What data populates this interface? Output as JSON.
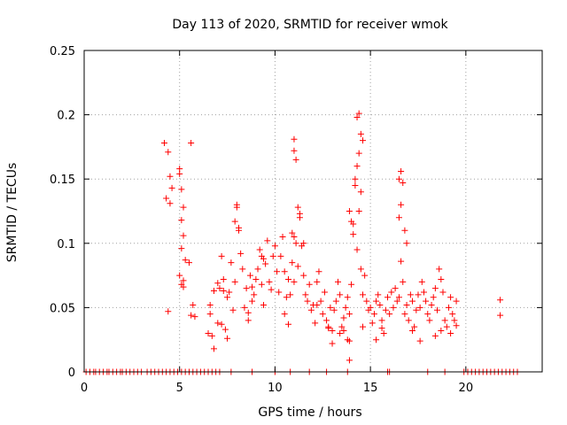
{
  "chart_data": {
    "type": "scatter",
    "title": "Day 113 of 2020, SRMTID for receiver wmok",
    "xlabel": "GPS time / hours",
    "ylabel": "SRMTID / TECUs",
    "xlim": [
      0,
      24
    ],
    "ylim": [
      0,
      0.25
    ],
    "xticks": [
      0,
      5,
      10,
      15,
      20
    ],
    "xtick_labels": [
      "0",
      "5",
      "10",
      "15",
      "20"
    ],
    "yticks": [
      0,
      0.05,
      0.1,
      0.15,
      0.2,
      0.25
    ],
    "ytick_labels": [
      "0",
      "0.05",
      "0.1",
      "0.15",
      "0.2",
      "0.25"
    ],
    "grid": true,
    "marker": "+",
    "series": [
      {
        "name": "SRMTID",
        "color": "#ff0000",
        "x": [
          4.2,
          4.4,
          4.5,
          4.3,
          4.6,
          4.5,
          4.4,
          5.0,
          5.1,
          5.2,
          5.0,
          5.1,
          5.2,
          5.3,
          5.0,
          5.1,
          5.2,
          5.6,
          5.5,
          5.7,
          5.6,
          5.8,
          5.1,
          5.2,
          6.5,
          6.6,
          6.7,
          6.8,
          7.0,
          7.1,
          7.2,
          7.3,
          7.4,
          7.5,
          7.6,
          7.7,
          7.8,
          7.9,
          8.0,
          8.1,
          8.2,
          8.3,
          8.4,
          8.5,
          8.6,
          8.7,
          8.8,
          8.9,
          9.0,
          9.1,
          9.2,
          9.3,
          9.4,
          9.5,
          9.6,
          9.7,
          9.8,
          9.9,
          10.0,
          10.1,
          10.2,
          10.3,
          10.4,
          10.5,
          10.6,
          10.7,
          10.8,
          10.9,
          11.0,
          11.1,
          11.2,
          11.3,
          11.4,
          11.5,
          11.6,
          11.7,
          11.8,
          11.9,
          12.0,
          12.1,
          12.2,
          12.3,
          12.4,
          12.5,
          12.6,
          12.7,
          12.8,
          12.9,
          13.0,
          13.1,
          13.2,
          13.3,
          13.4,
          13.5,
          13.6,
          13.7,
          13.8,
          13.9,
          14.0,
          14.1,
          14.2,
          14.3,
          14.4,
          14.5,
          14.6,
          14.7,
          14.8,
          14.9,
          15.0,
          15.1,
          15.2,
          15.3,
          15.4,
          15.5,
          15.6,
          15.7,
          15.8,
          15.9,
          16.0,
          16.1,
          16.2,
          16.3,
          16.4,
          16.5,
          16.6,
          16.7,
          16.8,
          16.9,
          17.0,
          17.1,
          17.2,
          17.3,
          17.4,
          17.5,
          17.6,
          17.7,
          17.8,
          17.9,
          18.0,
          18.1,
          18.2,
          18.3,
          18.4,
          18.5,
          18.6,
          18.7,
          18.8,
          18.9,
          19.0,
          19.1,
          19.2,
          19.3,
          19.4,
          19.5,
          11.0,
          11.0,
          11.1,
          11.2,
          11.3,
          11.5,
          14.3,
          14.4,
          14.5,
          14.4,
          14.3,
          14.2,
          14.5,
          14.6,
          14.0,
          13.9,
          14.1,
          16.6,
          16.5,
          16.7,
          16.6,
          16.5,
          16.8,
          16.9,
          10.9,
          11.0,
          8.8,
          8.1,
          8.0,
          7.9,
          9.3,
          9.4,
          8.6,
          7.5,
          7.2,
          7.3,
          7.0,
          6.8,
          6.6,
          10.5,
          10.7,
          12.8,
          13.0,
          13.4,
          13.6,
          13.8,
          13.9,
          14.6,
          15.3,
          15.6,
          17.2,
          17.6,
          18.4,
          18.7,
          19.2,
          19.5,
          21.8,
          21.8,
          13.9,
          12.2
        ],
        "y": [
          0.178,
          0.171,
          0.152,
          0.135,
          0.143,
          0.131,
          0.047,
          0.158,
          0.142,
          0.128,
          0.154,
          0.118,
          0.106,
          0.087,
          0.075,
          0.068,
          0.066,
          0.178,
          0.085,
          0.052,
          0.044,
          0.043,
          0.096,
          0.071,
          0.03,
          0.045,
          0.028,
          0.018,
          0.038,
          0.065,
          0.09,
          0.072,
          0.033,
          0.058,
          0.062,
          0.085,
          0.048,
          0.07,
          0.128,
          0.11,
          0.092,
          0.08,
          0.05,
          0.065,
          0.04,
          0.075,
          0.055,
          0.06,
          0.072,
          0.08,
          0.095,
          0.068,
          0.052,
          0.084,
          0.102,
          0.07,
          0.064,
          0.09,
          0.098,
          0.078,
          0.062,
          0.09,
          0.105,
          0.078,
          0.058,
          0.072,
          0.06,
          0.085,
          0.07,
          0.1,
          0.082,
          0.12,
          0.098,
          0.075,
          0.06,
          0.055,
          0.068,
          0.048,
          0.052,
          0.038,
          0.07,
          0.078,
          0.055,
          0.045,
          0.062,
          0.04,
          0.035,
          0.05,
          0.032,
          0.048,
          0.055,
          0.07,
          0.06,
          0.035,
          0.042,
          0.05,
          0.058,
          0.045,
          0.068,
          0.115,
          0.145,
          0.095,
          0.125,
          0.08,
          0.06,
          0.075,
          0.055,
          0.048,
          0.05,
          0.038,
          0.045,
          0.055,
          0.06,
          0.052,
          0.04,
          0.03,
          0.048,
          0.058,
          0.045,
          0.062,
          0.05,
          0.065,
          0.055,
          0.058,
          0.086,
          0.07,
          0.045,
          0.052,
          0.04,
          0.06,
          0.055,
          0.035,
          0.048,
          0.06,
          0.05,
          0.07,
          0.062,
          0.055,
          0.045,
          0.04,
          0.052,
          0.058,
          0.065,
          0.048,
          0.08,
          0.072,
          0.062,
          0.04,
          0.035,
          0.05,
          0.058,
          0.045,
          0.04,
          0.055,
          0.181,
          0.172,
          0.165,
          0.128,
          0.123,
          0.1,
          0.198,
          0.201,
          0.185,
          0.17,
          0.16,
          0.15,
          0.14,
          0.18,
          0.117,
          0.125,
          0.107,
          0.156,
          0.15,
          0.147,
          0.13,
          0.12,
          0.11,
          0.1,
          0.108,
          0.105,
          0.066,
          0.112,
          0.13,
          0.117,
          0.09,
          0.088,
          0.046,
          0.026,
          0.037,
          0.063,
          0.069,
          0.063,
          0.052,
          0.045,
          0.037,
          0.034,
          0.022,
          0.03,
          0.032,
          0.025,
          0.024,
          0.035,
          0.025,
          0.034,
          0.032,
          0.024,
          0.028,
          0.032,
          0.03,
          0.036,
          0.056,
          0.044,
          0.009,
          0.052
        ],
        "zero_x": [
          0.1,
          0.3,
          0.5,
          0.6,
          0.8,
          1.0,
          1.2,
          1.3,
          1.5,
          1.7,
          1.9,
          2.0,
          2.2,
          2.4,
          2.6,
          2.8,
          3.0,
          3.3,
          3.5,
          3.7,
          3.9,
          4.1,
          4.3,
          4.5,
          4.7,
          4.9,
          5.1,
          5.3,
          5.5,
          5.7,
          5.9,
          6.1,
          6.3,
          6.5,
          6.7,
          6.9,
          7.1,
          7.7,
          8.8,
          10.0,
          10.8,
          11.8,
          12.7,
          13.8,
          15.9,
          16.0,
          18.0,
          18.9,
          19.9,
          20.1,
          20.3,
          20.5,
          20.7,
          20.9,
          21.1,
          21.3,
          21.5,
          21.7,
          21.9,
          22.1,
          22.3,
          22.5,
          22.7
        ]
      }
    ]
  }
}
